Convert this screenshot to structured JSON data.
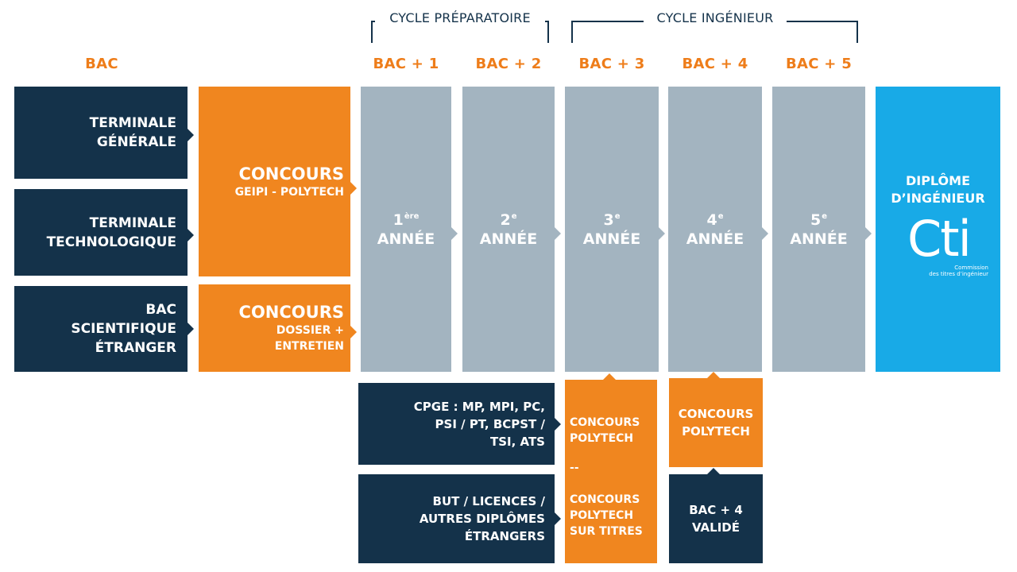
{
  "cycles": {
    "preparatoire": "CYCLE PRÉPARATOIRE",
    "ingenieur": "CYCLE INGÉNIEUR"
  },
  "headers": {
    "bac": "BAC",
    "bac1": "BAC + 1",
    "bac2": "BAC + 2",
    "bac3": "BAC + 3",
    "bac4": "BAC + 4",
    "bac5": "BAC + 5"
  },
  "origins": [
    {
      "lines": [
        "TERMINALE",
        "GÉNÉRALE"
      ]
    },
    {
      "lines": [
        "TERMINALE",
        "TECHNOLOGIQUE"
      ]
    },
    {
      "lines": [
        "BAC",
        "SCIENTIFIQUE",
        "ÉTRANGER"
      ]
    }
  ],
  "concours_geipi": {
    "title": "CONCOURS",
    "subtitle": "GEIPI - POLYTECH"
  },
  "concours_dossier": {
    "title": "CONCOURS",
    "line1": "DOSSIER +",
    "line2": "ENTRETIEN"
  },
  "years": [
    {
      "num": "1",
      "sup": "ère",
      "label": "ANNÉE"
    },
    {
      "num": "2",
      "sup": "e",
      "label": "ANNÉE"
    },
    {
      "num": "3",
      "sup": "e",
      "label": "ANNÉE"
    },
    {
      "num": "4",
      "sup": "e",
      "label": "ANNÉE"
    },
    {
      "num": "5",
      "sup": "e",
      "label": "ANNÉE"
    }
  ],
  "diplome": {
    "line1": "DIPLÔME",
    "line2": "D’INGÉNIEUR",
    "logo_text": "Cti",
    "logo_caption1": "Commission",
    "logo_caption2": "des titres d’ingénieur"
  },
  "admissions": {
    "cpge": [
      "CPGE : MP, MPI, PC,",
      "PSI / PT, BCPST /",
      "TSI, ATS"
    ],
    "but": [
      "BUT / LICENCES /",
      "AUTRES DIPLÔMES",
      "ÉTRANGERS"
    ],
    "concours_polytech_3": [
      "CONCOURS",
      "POLYTECH"
    ],
    "separator": "--",
    "concours_sur_titres": [
      "CONCOURS",
      "POLYTECH",
      "SUR TITRES"
    ],
    "concours_polytech_4": [
      "CONCOURS",
      "POLYTECH"
    ],
    "bac4_valide": [
      "BAC + 4",
      "VALIDÉ"
    ]
  },
  "colors": {
    "navy": "#14324a",
    "orange": "#f0861f",
    "grey": "#a3b4c0",
    "cyan": "#18aae7"
  }
}
